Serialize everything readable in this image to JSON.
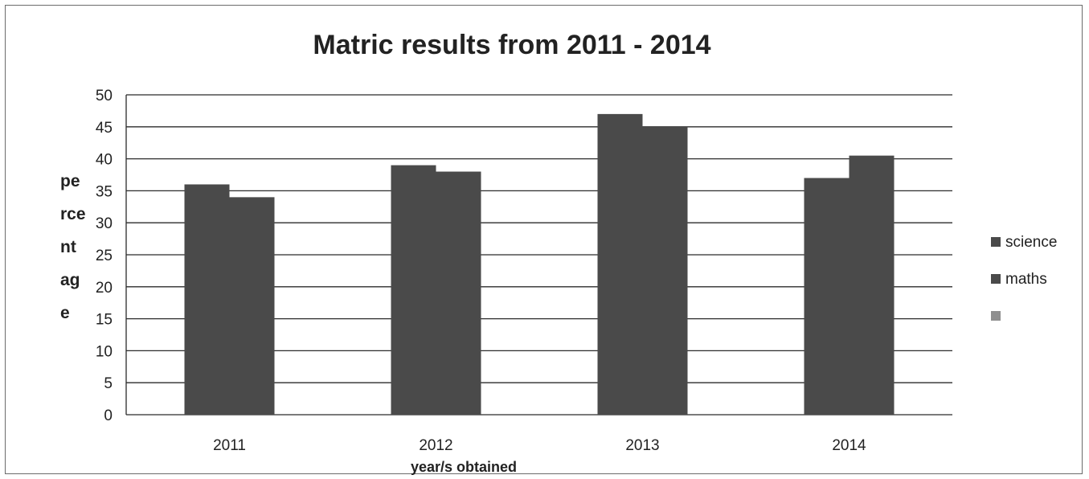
{
  "chart_data": {
    "type": "bar",
    "title": "Matric results from 2011 - 2014",
    "xlabel": "year/s obtained",
    "ylabel_lines": [
      "pe",
      "rce",
      "nt",
      "ag",
      "e"
    ],
    "categories": [
      "2011",
      "2012",
      "2013",
      "2014"
    ],
    "series": [
      {
        "name": "science",
        "values": [
          36,
          39,
          47,
          37
        ]
      },
      {
        "name": "maths",
        "values": [
          34,
          38,
          45,
          40.5
        ]
      }
    ],
    "extra_legend_entry": "",
    "ylim": [
      0,
      50
    ],
    "yticks": [
      "0",
      "5",
      "10",
      "15",
      "20",
      "25",
      "30",
      "35",
      "40",
      "45",
      "50"
    ],
    "grid": true,
    "legend_position": "right",
    "colors": {
      "bar": "#4a4a4a",
      "legend_third": "#8f8f8f",
      "grid": "#2b2b2b"
    }
  }
}
